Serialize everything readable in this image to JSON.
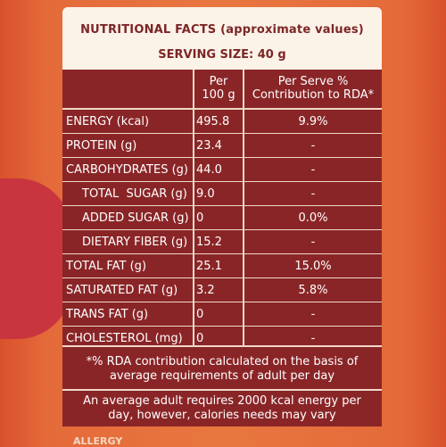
{
  "header": {
    "title": "NUTRITIONAL FACTS (approximate values)",
    "serving": "SERVING SIZE: 40 g"
  },
  "table": {
    "col_headers": {
      "per100_line1": "Per",
      "per100_line2": "100 g",
      "rda_line1": "Per Serve %",
      "rda_line2": "Contribution to RDA*"
    },
    "rows": [
      {
        "label": "ENERGY (kcal)",
        "per100": "495.8",
        "rda": "9.9%"
      },
      {
        "label": "PROTEIN (g)",
        "per100": "23.4",
        "rda": "-"
      },
      {
        "label": "CARBOHYDRATES (g)",
        "per100": "44.0",
        "rda": "-"
      },
      {
        "label": "TOTAL  SUGAR (g)",
        "per100": "9.0",
        "rda": "-"
      },
      {
        "label": "ADDED SUGAR (g)",
        "per100": "0",
        "rda": "0.0%"
      },
      {
        "label": "DIETARY FIBER (g)",
        "per100": "15.2",
        "rda": "-"
      },
      {
        "label": "TOTAL FAT (g)",
        "per100": "25.1",
        "rda": "15.0%"
      },
      {
        "label": "SATURATED FAT (g)",
        "per100": "3.2",
        "rda": "5.8%"
      },
      {
        "label": "TRANS FAT (g)",
        "per100": "0",
        "rda": "-"
      },
      {
        "label": "CHOLESTEROL (mg)",
        "per100": "0",
        "rda": "-"
      }
    ]
  },
  "notes": {
    "rda_note_line1": "*% RDA contribution calculated on the basis of",
    "rda_note_line2": "average requirements of adult per day",
    "energy_note_line1": "An average adult requires 2000 kcal energy per",
    "energy_note_line2": "day, however, calories needs may vary"
  },
  "footer": {
    "partial_text": "ALLERGY"
  },
  "colors": {
    "background": "#e8773f",
    "table_bg": "#8a2527",
    "header_bg": "#fbf2e8",
    "header_text": "#7c2626",
    "grid_lines": "#efd9c8"
  }
}
